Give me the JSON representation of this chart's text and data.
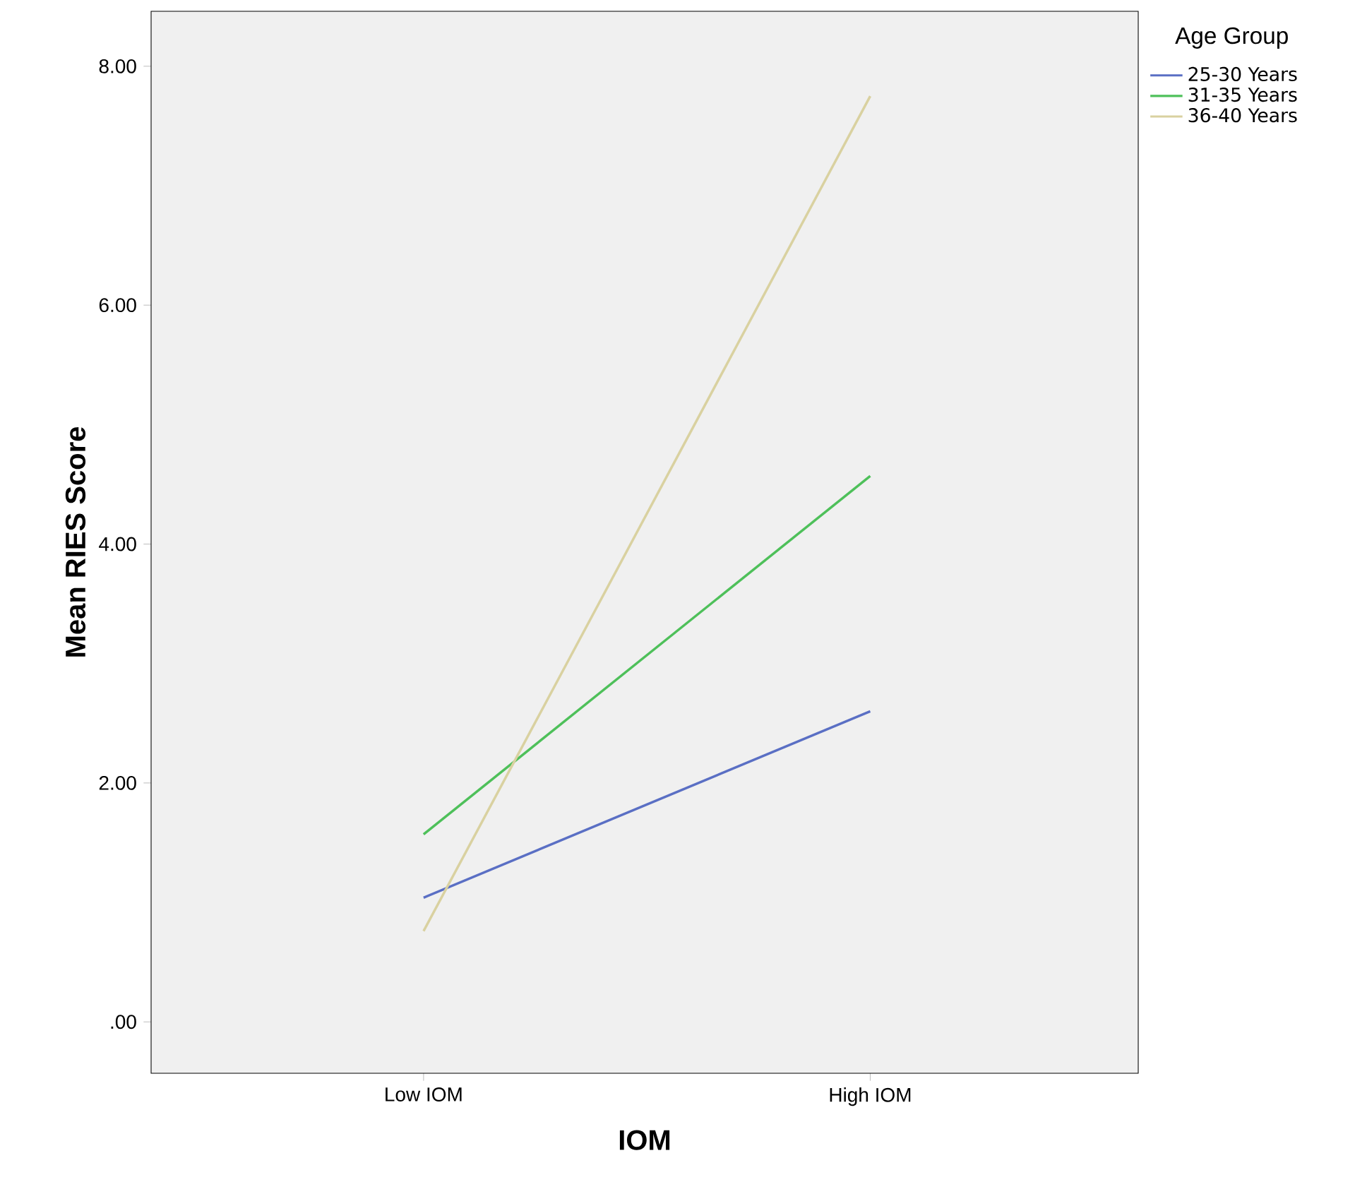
{
  "chart_data": {
    "type": "line",
    "xlabel": "IOM",
    "ylabel": "Mean RIES Score",
    "legend_title": "Age Group",
    "categories": [
      "Low IOM",
      "High IOM"
    ],
    "series": [
      {
        "name": "25-30 Years",
        "color": "#5a6fc4",
        "values": [
          1.04,
          2.6
        ]
      },
      {
        "name": "31-35 Years",
        "color": "#4ec05a",
        "values": [
          1.57,
          4.57
        ]
      },
      {
        "name": "36-40 Years",
        "color": "#d9d1a0",
        "values": [
          0.76,
          7.75
        ]
      }
    ],
    "ylim": [
      -0.43,
      8.46
    ],
    "yticks": [
      {
        "value": 0,
        "label": ".00"
      },
      {
        "value": 2,
        "label": "2.00"
      },
      {
        "value": 4,
        "label": "4.00"
      },
      {
        "value": 6,
        "label": "6.00"
      },
      {
        "value": 8,
        "label": "8.00"
      }
    ],
    "legend": "top right",
    "marker": "none",
    "line_style": "solid",
    "grid": false
  }
}
